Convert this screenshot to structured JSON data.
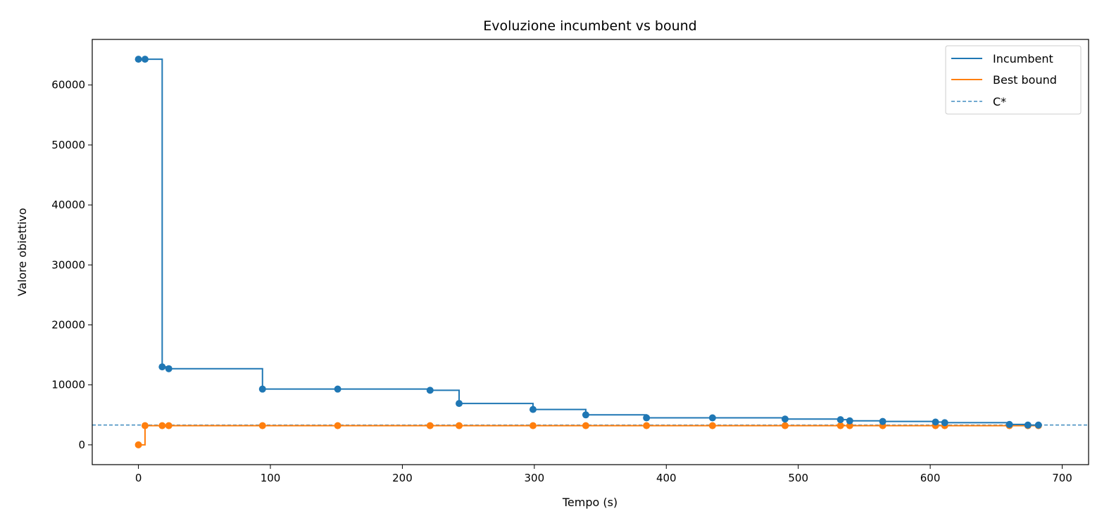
{
  "chart_data": {
    "type": "line",
    "title": "Evoluzione incumbent vs bound",
    "xlabel": "Tempo (s)",
    "ylabel": "Valore obiettivo",
    "xlim": [
      -35,
      720
    ],
    "ylim": [
      -3300,
      67600
    ],
    "xticks": [
      0,
      100,
      200,
      300,
      400,
      500,
      600,
      700
    ],
    "yticks": [
      0,
      10000,
      20000,
      30000,
      40000,
      50000,
      60000
    ],
    "grid": false,
    "legend_position": "top-right",
    "series": [
      {
        "name": "Incumbent",
        "color": "#1f77b4",
        "style": "step",
        "x": [
          0,
          5,
          18,
          23,
          94,
          151,
          221,
          243,
          299,
          339,
          385,
          435,
          490,
          532,
          539,
          564,
          604,
          611,
          660,
          674,
          682
        ],
        "y": [
          64300,
          64300,
          13000,
          12700,
          9300,
          9300,
          9100,
          6900,
          5900,
          5000,
          4500,
          4500,
          4300,
          4200,
          4000,
          3900,
          3800,
          3700,
          3400,
          3300,
          3300
        ]
      },
      {
        "name": "Best bound",
        "color": "#ff7f0e",
        "style": "step",
        "x": [
          0,
          5,
          18,
          23,
          94,
          151,
          221,
          243,
          299,
          339,
          385,
          435,
          490,
          532,
          539,
          564,
          604,
          611,
          660,
          674,
          682
        ],
        "y": [
          0,
          3200,
          3200,
          3200,
          3200,
          3200,
          3200,
          3200,
          3200,
          3200,
          3200,
          3200,
          3200,
          3200,
          3200,
          3200,
          3200,
          3200,
          3200,
          3200,
          3200
        ]
      }
    ],
    "reference_line": {
      "name": "C*",
      "color": "#1f77b4",
      "style": "dashed",
      "y": 3300
    }
  }
}
